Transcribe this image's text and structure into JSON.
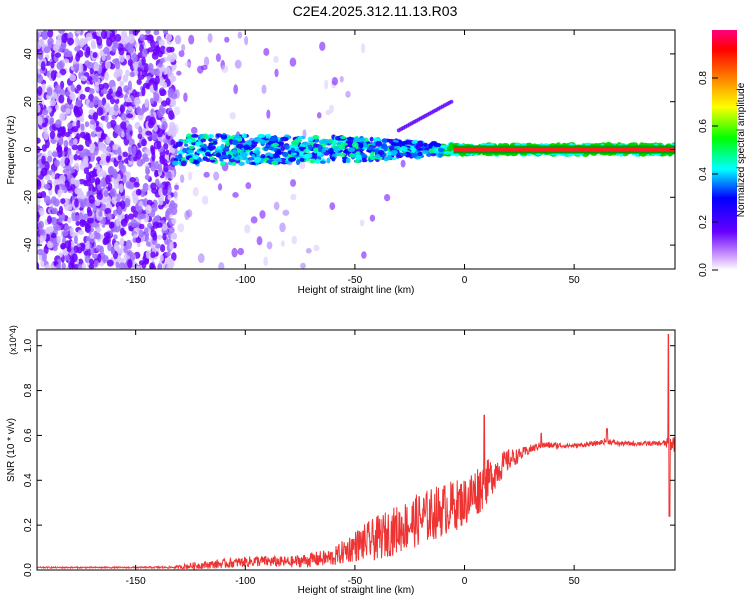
{
  "title": "C2E4.2025.312.11.13.R03",
  "chart_data": [
    {
      "type": "heatmap",
      "title": "",
      "xlabel": "Height of straight line (km)",
      "ylabel": "Frequency (Hz)",
      "xlim": [
        -195,
        96
      ],
      "ylim": [
        -50,
        50
      ],
      "xticks": [
        -150,
        -100,
        -50,
        0,
        50
      ],
      "yticks": [
        -40,
        -20,
        0,
        20,
        40
      ],
      "colorbar": {
        "label": "Normalized spectral amplitude",
        "range": [
          0,
          1
        ],
        "ticks": [
          "0.0",
          "0.2",
          "0.4",
          "0.6",
          "0.8"
        ],
        "colormap": [
          "#ffffff",
          "#cc99ff",
          "#6600ff",
          "#0000ff",
          "#00ffff",
          "#00ff00",
          "#ffff00",
          "#ff8000",
          "#ff0000",
          "#ff0080"
        ]
      },
      "band_center_hz": 0,
      "band_halfwidth_hz": [
        {
          "x": -135,
          "hz": 6
        },
        {
          "x": -100,
          "hz": 6
        },
        {
          "x": -50,
          "hz": 5
        },
        {
          "x": -20,
          "hz": 3
        },
        {
          "x": 0,
          "hz": 2
        },
        {
          "x": 95,
          "hz": 2
        }
      ],
      "noise_region_x": [
        -195,
        -132
      ],
      "grid": false
    },
    {
      "type": "line",
      "title": "",
      "xlabel": "Height of straight line (km)",
      "ylabel": "SNR (10 * v/v)",
      "y_multiplier": "(x10^4)",
      "xlim": [
        -195,
        96
      ],
      "ylim": [
        0,
        1.07
      ],
      "xticks": [
        -150,
        -100,
        -50,
        0,
        50
      ],
      "yticks": [
        "0.0",
        "0.2",
        "0.4",
        "0.6",
        "0.8",
        "1.0"
      ],
      "color": "#ee3333",
      "grid": false,
      "series": [
        {
          "envelope": {
            "x": [
              -195,
              -150,
              -132,
              -125,
              -110,
              -95,
              -80,
              -60,
              -50,
              -40,
              -30,
              -20,
              -10,
              0,
              5,
              10,
              15,
              20,
              25,
              30,
              35,
              40,
              50,
              60,
              65,
              70,
              80,
              90,
              95
            ],
            "baseline": [
              0.01,
              0.01,
              0.01,
              0.012,
              0.02,
              0.03,
              0.025,
              0.04,
              0.08,
              0.1,
              0.14,
              0.18,
              0.22,
              0.26,
              0.3,
              0.35,
              0.42,
              0.47,
              0.5,
              0.53,
              0.55,
              0.55,
              0.55,
              0.56,
              0.57,
              0.56,
              0.56,
              0.56,
              0.55
            ],
            "amplitude": [
              0.006,
              0.006,
              0.01,
              0.03,
              0.04,
              0.05,
              0.05,
              0.08,
              0.14,
              0.2,
              0.22,
              0.24,
              0.24,
              0.22,
              0.24,
              0.2,
              0.14,
              0.1,
              0.06,
              0.04,
              0.03,
              0.03,
              0.02,
              0.02,
              0.03,
              0.02,
              0.02,
              0.02,
              0.08
            ]
          },
          "peaks": [
            {
              "x": 9,
              "y": 0.69
            },
            {
              "x": 35,
              "y": 0.61
            },
            {
              "x": 65,
              "y": 0.63
            },
            {
              "x": 93,
              "y": 1.05
            },
            {
              "x": 93.5,
              "y": 0.24
            }
          ]
        }
      ]
    }
  ]
}
